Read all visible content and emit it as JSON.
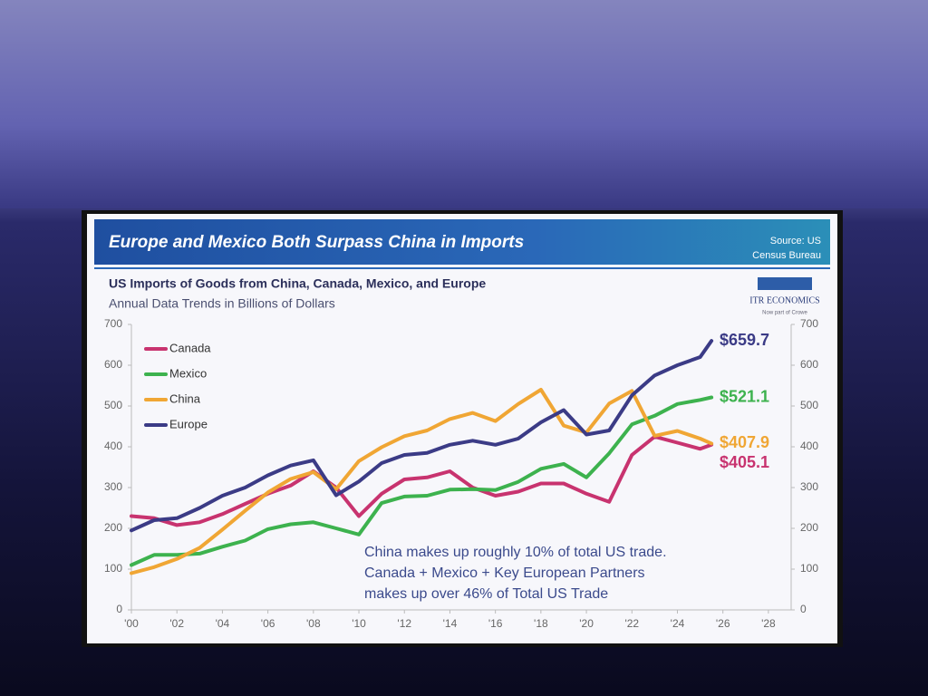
{
  "chart_data": {
    "type": "line",
    "title": "Europe and Mexico Both Surpass China in Imports",
    "source": [
      "Source: US",
      "Census Bureau"
    ],
    "subtitle": "US Imports of Goods from China, Canada, Mexico, and Europe",
    "subtitle2": "Annual Data Trends in Billions of Dollars",
    "logo": [
      "ITR ECONOMICS",
      "Now part of Crowe"
    ],
    "annotation": [
      "China makes up roughly 10% of total US trade.",
      "Canada + Mexico + Key European Partners",
      "makes up over 46% of Total US Trade"
    ],
    "legend": "upper left",
    "x": [
      2000,
      2001,
      2002,
      2003,
      2004,
      2005,
      2006,
      2007,
      2008,
      2009,
      2010,
      2011,
      2012,
      2013,
      2014,
      2015,
      2016,
      2017,
      2018,
      2019,
      2020,
      2021,
      2022,
      2023,
      2024,
      2025,
      2025.5
    ],
    "xlim": [
      2000,
      2029
    ],
    "xticks": [
      {
        "value": 2000,
        "label": "'00"
      },
      {
        "value": 2002,
        "label": "'02"
      },
      {
        "value": 2004,
        "label": "'04"
      },
      {
        "value": 2006,
        "label": "'06"
      },
      {
        "value": 2008,
        "label": "'08"
      },
      {
        "value": 2010,
        "label": "'10"
      },
      {
        "value": 2012,
        "label": "'12"
      },
      {
        "value": 2014,
        "label": "'14"
      },
      {
        "value": 2016,
        "label": "'16"
      },
      {
        "value": 2018,
        "label": "'18"
      },
      {
        "value": 2020,
        "label": "'20"
      },
      {
        "value": 2022,
        "label": "'22"
      },
      {
        "value": 2024,
        "label": "'24"
      },
      {
        "value": 2026,
        "label": "'26"
      },
      {
        "value": 2028,
        "label": "'28"
      }
    ],
    "ylim": [
      0,
      700
    ],
    "yticks": [
      0,
      100,
      200,
      300,
      400,
      500,
      600,
      700
    ],
    "y2lim": [
      0,
      700
    ],
    "y2ticks": [
      0,
      100,
      200,
      300,
      400,
      500,
      600,
      700
    ],
    "series": [
      {
        "name": "Canada",
        "color": "#c8336f",
        "values": [
          230,
          225,
          208,
          215,
          235,
          260,
          285,
          305,
          340,
          300,
          230,
          285,
          320,
          325,
          340,
          300,
          280,
          290,
          310,
          310,
          285,
          265,
          380,
          425,
          410,
          395,
          405.1
        ],
        "value_labels": [
          null,
          null,
          null,
          null,
          null,
          null,
          null,
          null,
          null,
          null,
          null,
          null,
          null,
          null,
          null,
          null,
          null,
          null,
          null,
          null,
          null,
          null,
          null,
          null,
          null,
          null,
          "$405.1"
        ]
      },
      {
        "name": "Mexico",
        "color": "#3db24e",
        "values": [
          110,
          135,
          135,
          138,
          155,
          170,
          198,
          210,
          215,
          200,
          185,
          262,
          278,
          280,
          295,
          296,
          294,
          314,
          346,
          358,
          325,
          384,
          455,
          476,
          505,
          515,
          521.1
        ],
        "value_labels": [
          null,
          null,
          null,
          null,
          null,
          null,
          null,
          null,
          null,
          null,
          null,
          null,
          null,
          null,
          null,
          null,
          null,
          null,
          null,
          null,
          null,
          null,
          null,
          null,
          null,
          null,
          "$521.1"
        ]
      },
      {
        "name": "China",
        "color": "#f0a634",
        "values": [
          90,
          105,
          125,
          152,
          197,
          243,
          288,
          321,
          338,
          296,
          365,
          399,
          426,
          440,
          468,
          483,
          463,
          505,
          540,
          452,
          435,
          506,
          537,
          427,
          439,
          420,
          407.9
        ],
        "value_labels": [
          null,
          null,
          null,
          null,
          null,
          null,
          null,
          null,
          null,
          null,
          null,
          null,
          null,
          null,
          null,
          null,
          null,
          null,
          null,
          null,
          null,
          null,
          null,
          null,
          null,
          null,
          "$407.9"
        ]
      },
      {
        "name": "Europe",
        "color": "#3b3b86",
        "values": [
          195,
          220,
          225,
          250,
          280,
          300,
          330,
          354,
          367,
          281,
          315,
          360,
          380,
          385,
          405,
          415,
          405,
          420,
          460,
          490,
          430,
          440,
          526,
          575,
          600,
          620,
          659.7
        ],
        "value_labels": [
          null,
          null,
          null,
          null,
          null,
          null,
          null,
          null,
          null,
          null,
          null,
          null,
          null,
          null,
          null,
          null,
          null,
          null,
          null,
          null,
          null,
          null,
          null,
          null,
          null,
          null,
          "$659.7"
        ]
      }
    ]
  }
}
